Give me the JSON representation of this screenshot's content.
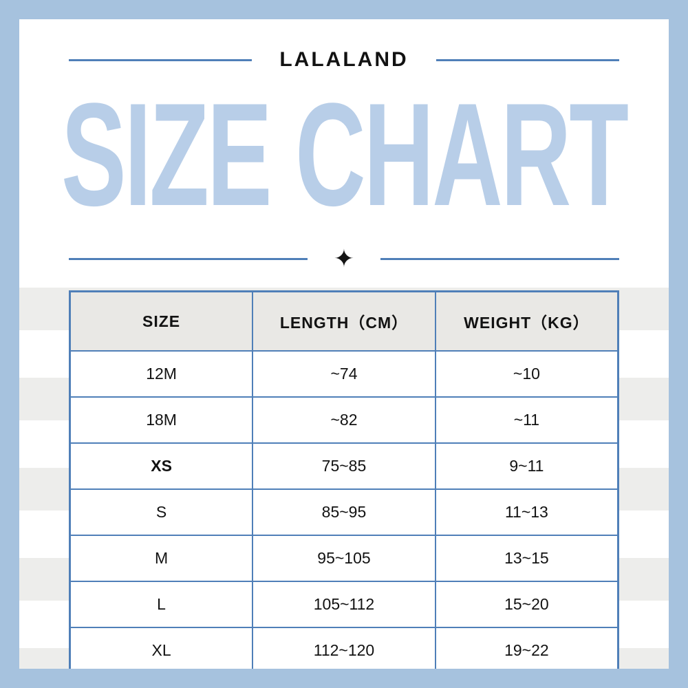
{
  "page": {
    "frame_color": "#a6c2de",
    "accent_color": "#4f7fb8",
    "title_color": "#b8cee8",
    "header_bg_color": "#e9e8e5",
    "stripe_color": "#ededeb"
  },
  "header": {
    "brand": "LALALAND",
    "title": "SIZE CHART",
    "star_icon": "✦"
  },
  "chart_data": {
    "type": "table",
    "title": "SIZE CHART",
    "columns": [
      "SIZE",
      "LENGTH（CM）",
      "WEIGHT（KG）"
    ],
    "rows": [
      {
        "size": "12M",
        "length_cm": "~74",
        "weight_kg": "~10"
      },
      {
        "size": "18M",
        "length_cm": "~82",
        "weight_kg": "~11"
      },
      {
        "size": "XS",
        "length_cm": "75~85",
        "weight_kg": "9~11"
      },
      {
        "size": "S",
        "length_cm": "85~95",
        "weight_kg": "11~13"
      },
      {
        "size": "M",
        "length_cm": "95~105",
        "weight_kg": "13~15"
      },
      {
        "size": "L",
        "length_cm": "105~112",
        "weight_kg": "15~20"
      },
      {
        "size": "XL",
        "length_cm": "112~120",
        "weight_kg": "19~22"
      }
    ]
  }
}
